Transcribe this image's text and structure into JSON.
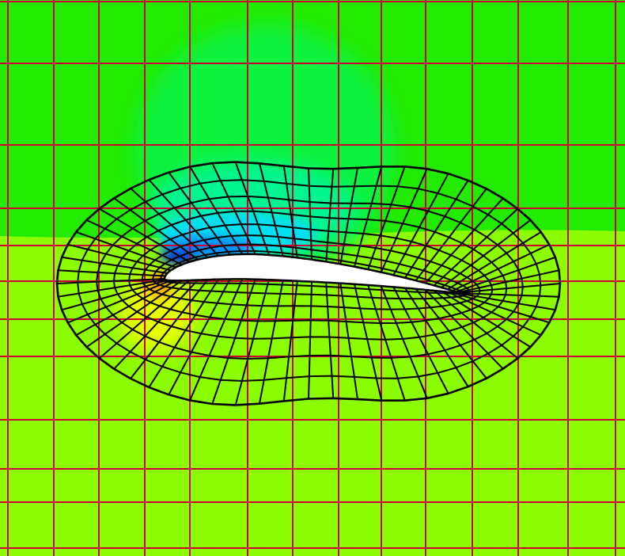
{
  "figure": {
    "kind": "overset-grid-pressure-contour",
    "colors": {
      "background_upper": "#22ea00",
      "background_lower": "#8cfc00",
      "suction_mid": "#11f23c",
      "suction_teal": "#00f590",
      "suction_cyan": "#00e0f0",
      "suction_blue": "#0090ff",
      "suction_deep": "#0030e0",
      "stagnation_yellow": "#e6ff00",
      "stagnation_orange": "#ffb000",
      "stagnation_red": "#ff7a00",
      "airfoil": "#ffffff",
      "background_grid_lines": "#cc0033",
      "body_grid_lines": "#000000"
    },
    "background_grid": {
      "line_color_name": "red",
      "layer": "behind"
    },
    "body_grid": {
      "topology": "O-grid",
      "line_color_name": "black",
      "layer": "front"
    },
    "airfoil": {
      "fill_name": "white"
    }
  }
}
